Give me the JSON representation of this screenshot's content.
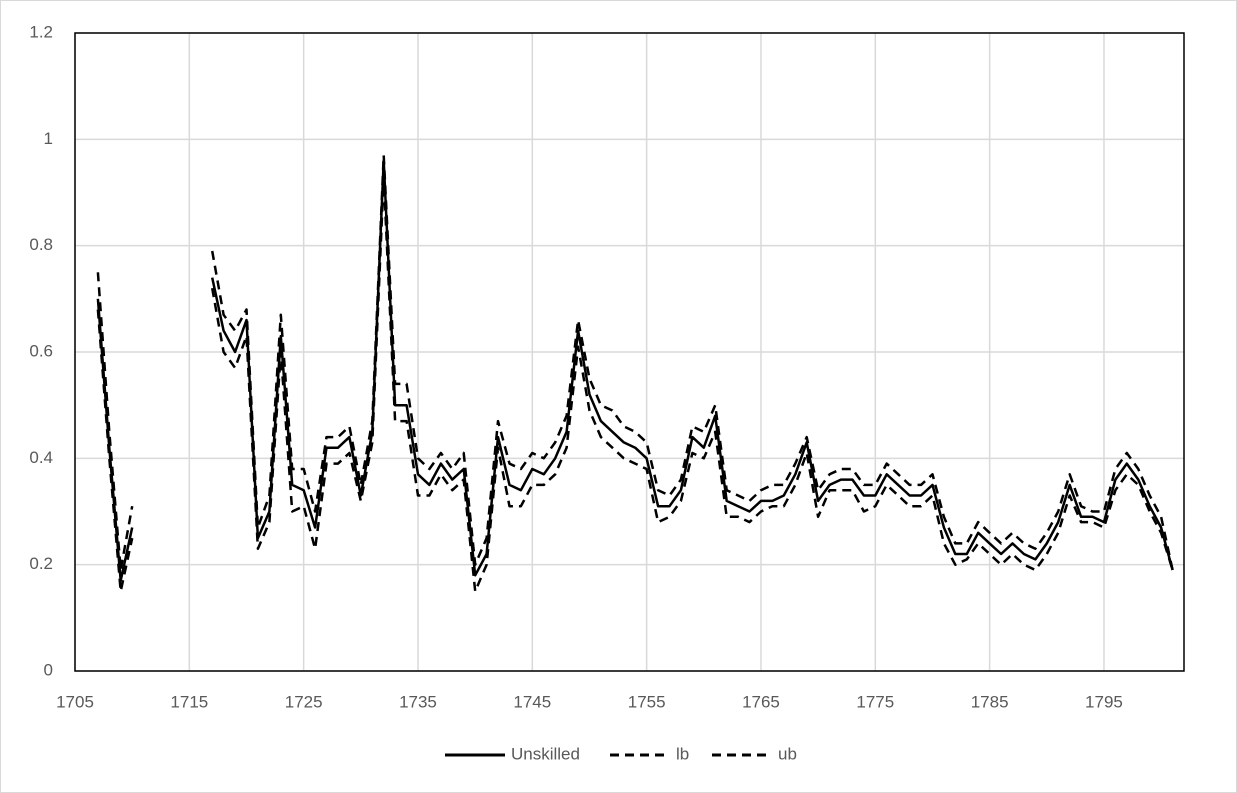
{
  "chart_data": {
    "type": "line",
    "x": [
      1707,
      1708,
      1709,
      1710,
      1711,
      1712,
      1713,
      1714,
      1715,
      1716,
      1717,
      1718,
      1719,
      1720,
      1721,
      1722,
      1723,
      1724,
      1725,
      1726,
      1727,
      1728,
      1729,
      1730,
      1731,
      1732,
      1733,
      1734,
      1735,
      1736,
      1737,
      1738,
      1739,
      1740,
      1741,
      1742,
      1743,
      1744,
      1745,
      1746,
      1747,
      1748,
      1749,
      1750,
      1751,
      1752,
      1753,
      1754,
      1755,
      1756,
      1757,
      1758,
      1759,
      1760,
      1761,
      1762,
      1763,
      1764,
      1765,
      1766,
      1767,
      1768,
      1769,
      1770,
      1771,
      1772,
      1773,
      1774,
      1775,
      1776,
      1777,
      1778,
      1779,
      1780,
      1781,
      1782,
      1783,
      1784,
      1785,
      1786,
      1787,
      1788,
      1789,
      1790,
      1791,
      1792,
      1793,
      1794,
      1795,
      1796,
      1797,
      1798,
      1799,
      1800,
      1801
    ],
    "series": [
      {
        "name": "Unskilled",
        "color": "#000000",
        "dash": "solid",
        "values": [
          0.7,
          0.42,
          0.17,
          0.27,
          null,
          null,
          null,
          null,
          null,
          null,
          0.74,
          0.64,
          0.6,
          0.66,
          0.25,
          0.3,
          0.63,
          0.35,
          0.34,
          0.27,
          0.42,
          0.42,
          0.44,
          0.33,
          0.45,
          0.96,
          0.5,
          0.5,
          0.37,
          0.35,
          0.39,
          0.36,
          0.38,
          0.18,
          0.22,
          0.44,
          0.35,
          0.34,
          0.38,
          0.37,
          0.4,
          0.45,
          0.64,
          0.52,
          0.47,
          0.45,
          0.43,
          0.42,
          0.4,
          0.31,
          0.31,
          0.34,
          0.44,
          0.42,
          0.48,
          0.32,
          0.31,
          0.3,
          0.32,
          0.32,
          0.33,
          0.37,
          0.43,
          0.32,
          0.35,
          0.36,
          0.36,
          0.33,
          0.33,
          0.37,
          0.35,
          0.33,
          0.33,
          0.35,
          0.27,
          0.22,
          0.22,
          0.26,
          0.24,
          0.22,
          0.24,
          0.22,
          0.21,
          0.24,
          0.28,
          0.35,
          0.29,
          0.29,
          0.28,
          0.36,
          0.39,
          0.36,
          0.31,
          0.27,
          0.19
        ]
      },
      {
        "name": "lb",
        "color": "#000000",
        "dash": "dashed",
        "values": [
          0.68,
          0.4,
          0.15,
          0.25,
          null,
          null,
          null,
          null,
          null,
          null,
          0.72,
          0.6,
          0.57,
          0.63,
          0.23,
          0.28,
          0.6,
          0.3,
          0.31,
          0.23,
          0.39,
          0.39,
          0.41,
          0.32,
          0.43,
          0.93,
          0.47,
          0.47,
          0.33,
          0.33,
          0.37,
          0.34,
          0.36,
          0.15,
          0.2,
          0.42,
          0.31,
          0.31,
          0.35,
          0.35,
          0.37,
          0.42,
          0.61,
          0.49,
          0.44,
          0.42,
          0.4,
          0.39,
          0.38,
          0.28,
          0.29,
          0.32,
          0.41,
          0.4,
          0.45,
          0.29,
          0.29,
          0.28,
          0.3,
          0.31,
          0.31,
          0.35,
          0.41,
          0.29,
          0.34,
          0.34,
          0.34,
          0.3,
          0.31,
          0.35,
          0.33,
          0.31,
          0.31,
          0.33,
          0.24,
          0.2,
          0.21,
          0.24,
          0.22,
          0.2,
          0.22,
          0.2,
          0.19,
          0.22,
          0.26,
          0.33,
          0.28,
          0.28,
          0.27,
          0.34,
          0.37,
          0.35,
          0.3,
          0.26,
          0.19
        ]
      },
      {
        "name": "ub",
        "color": "#000000",
        "dash": "dashed",
        "values": [
          0.75,
          0.45,
          0.19,
          0.31,
          null,
          null,
          null,
          null,
          null,
          null,
          0.79,
          0.67,
          0.64,
          0.68,
          0.27,
          0.33,
          0.67,
          0.38,
          0.38,
          0.3,
          0.44,
          0.44,
          0.46,
          0.35,
          0.47,
          0.97,
          0.54,
          0.54,
          0.4,
          0.38,
          0.41,
          0.38,
          0.41,
          0.2,
          0.25,
          0.47,
          0.39,
          0.38,
          0.41,
          0.4,
          0.43,
          0.48,
          0.66,
          0.55,
          0.5,
          0.49,
          0.46,
          0.45,
          0.43,
          0.34,
          0.33,
          0.36,
          0.46,
          0.45,
          0.5,
          0.34,
          0.33,
          0.32,
          0.34,
          0.35,
          0.35,
          0.39,
          0.44,
          0.34,
          0.37,
          0.38,
          0.38,
          0.35,
          0.35,
          0.39,
          0.37,
          0.35,
          0.35,
          0.37,
          0.29,
          0.24,
          0.24,
          0.28,
          0.26,
          0.24,
          0.26,
          0.24,
          0.23,
          0.26,
          0.3,
          0.37,
          0.31,
          0.3,
          0.3,
          0.38,
          0.41,
          0.38,
          0.33,
          0.29,
          0.19
        ]
      }
    ],
    "xlim": [
      1705,
      1802
    ],
    "xticks": [
      1705,
      1715,
      1725,
      1735,
      1745,
      1755,
      1765,
      1775,
      1785,
      1795
    ],
    "ylim": [
      0,
      1.2
    ],
    "yticks": [
      0,
      0.2,
      0.4,
      0.6,
      0.8,
      1,
      1.2
    ],
    "grid": true,
    "legend": "bottom"
  }
}
